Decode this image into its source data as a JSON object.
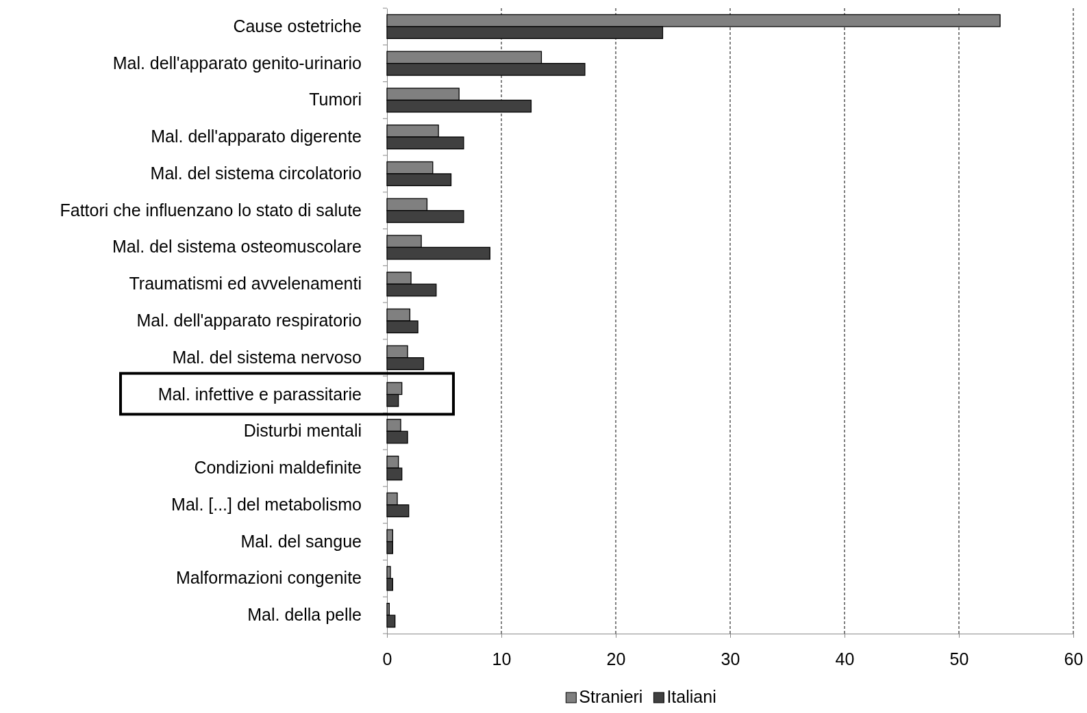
{
  "chart_data": {
    "type": "bar",
    "orientation": "horizontal",
    "categories": [
      "Cause ostetriche",
      "Mal. dell'apparato genito-urinario",
      "Tumori",
      "Mal. dell'apparato digerente",
      "Mal. del sistema circolatorio",
      "Fattori che influenzano lo stato di salute",
      "Mal. del sistema osteomuscolare",
      "Traumatismi ed avvelenamenti",
      "Mal. dell'apparato respiratorio",
      "Mal. del sistema nervoso",
      "Mal. infettive e parassitarie",
      "Disturbi mentali",
      "Condizioni maldefinite",
      "Mal. [...] del metabolismo",
      "Mal. del sangue",
      "Malformazioni congenite",
      "Mal. della pelle"
    ],
    "series": [
      {
        "name": "Stranieri",
        "color": "#808080",
        "values": [
          53.6,
          13.5,
          6.3,
          4.5,
          4.0,
          3.5,
          3.0,
          2.1,
          2.0,
          1.8,
          1.3,
          1.2,
          1.0,
          0.9,
          0.5,
          0.3,
          0.2
        ]
      },
      {
        "name": "Italiani",
        "color": "#404040",
        "values": [
          24.1,
          17.3,
          12.6,
          6.7,
          5.6,
          6.7,
          9.0,
          4.3,
          2.7,
          3.2,
          1.0,
          1.8,
          1.3,
          1.9,
          0.5,
          0.5,
          0.7
        ]
      }
    ],
    "xlim": [
      0,
      60
    ],
    "xticks": [
      0,
      10,
      20,
      30,
      40,
      50,
      60
    ],
    "grid": "x",
    "legend": "bottom"
  }
}
